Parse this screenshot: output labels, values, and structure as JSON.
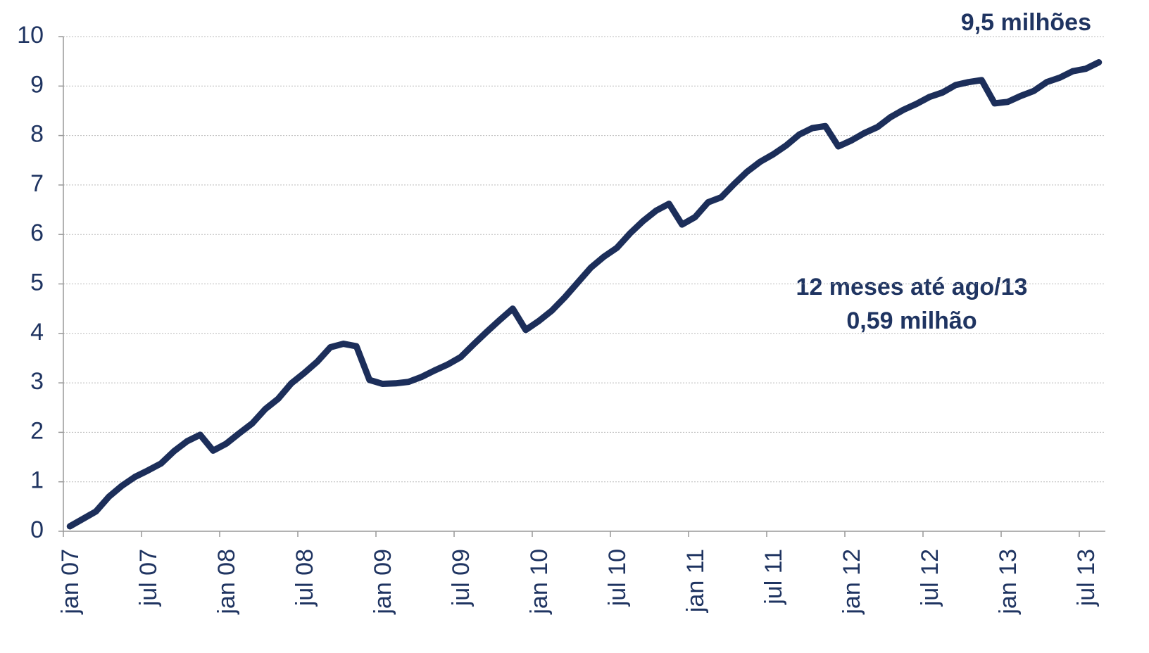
{
  "chart_data": {
    "type": "line",
    "annotations": [
      "9,5 milhões",
      "12 meses até ago/13",
      "0,59 milhão"
    ],
    "categories": [
      "jan 07",
      null,
      null,
      null,
      null,
      null,
      "jul 07",
      null,
      null,
      null,
      null,
      null,
      "jan 08",
      null,
      null,
      null,
      null,
      null,
      "jul 08",
      null,
      null,
      null,
      null,
      null,
      "jan 09",
      null,
      null,
      null,
      null,
      null,
      "jul 09",
      null,
      null,
      null,
      null,
      null,
      "jan 10",
      null,
      null,
      null,
      null,
      null,
      "jul 10",
      null,
      null,
      null,
      null,
      null,
      "jan 11",
      null,
      null,
      null,
      null,
      null,
      "jul 11",
      null,
      null,
      null,
      null,
      null,
      "jan 12",
      null,
      null,
      null,
      null,
      null,
      "jul 12",
      null,
      null,
      null,
      null,
      null,
      "jan 13",
      null,
      null,
      null,
      null,
      null,
      "jul 13",
      null
    ],
    "series": [
      {
        "color": "#1c2e5a",
        "values": [
          0.1,
          0.25,
          0.4,
          0.7,
          0.92,
          1.1,
          1.23,
          1.37,
          1.62,
          1.82,
          1.95,
          1.63,
          1.77,
          1.98,
          2.18,
          2.47,
          2.68,
          2.99,
          3.2,
          3.43,
          3.72,
          3.79,
          3.74,
          3.06,
          2.98,
          2.99,
          3.02,
          3.12,
          3.25,
          3.37,
          3.52,
          3.78,
          4.03,
          4.27,
          4.5,
          4.07,
          4.25,
          4.46,
          4.73,
          5.03,
          5.33,
          5.55,
          5.73,
          6.02,
          6.27,
          6.48,
          6.62,
          6.2,
          6.35,
          6.65,
          6.75,
          7.02,
          7.27,
          7.47,
          7.62,
          7.8,
          8.02,
          8.15,
          8.19,
          7.78,
          7.9,
          8.05,
          8.17,
          8.37,
          8.52,
          8.64,
          8.78,
          8.87,
          9.02,
          9.08,
          9.12,
          8.65,
          8.68,
          8.8,
          8.9,
          9.08,
          9.17,
          9.3,
          9.35,
          9.48
        ]
      }
    ],
    "ylim": [
      0,
      10
    ],
    "yticks": [
      0,
      1,
      2,
      3,
      4,
      5,
      6,
      7,
      8,
      9,
      10
    ],
    "grid": true
  }
}
